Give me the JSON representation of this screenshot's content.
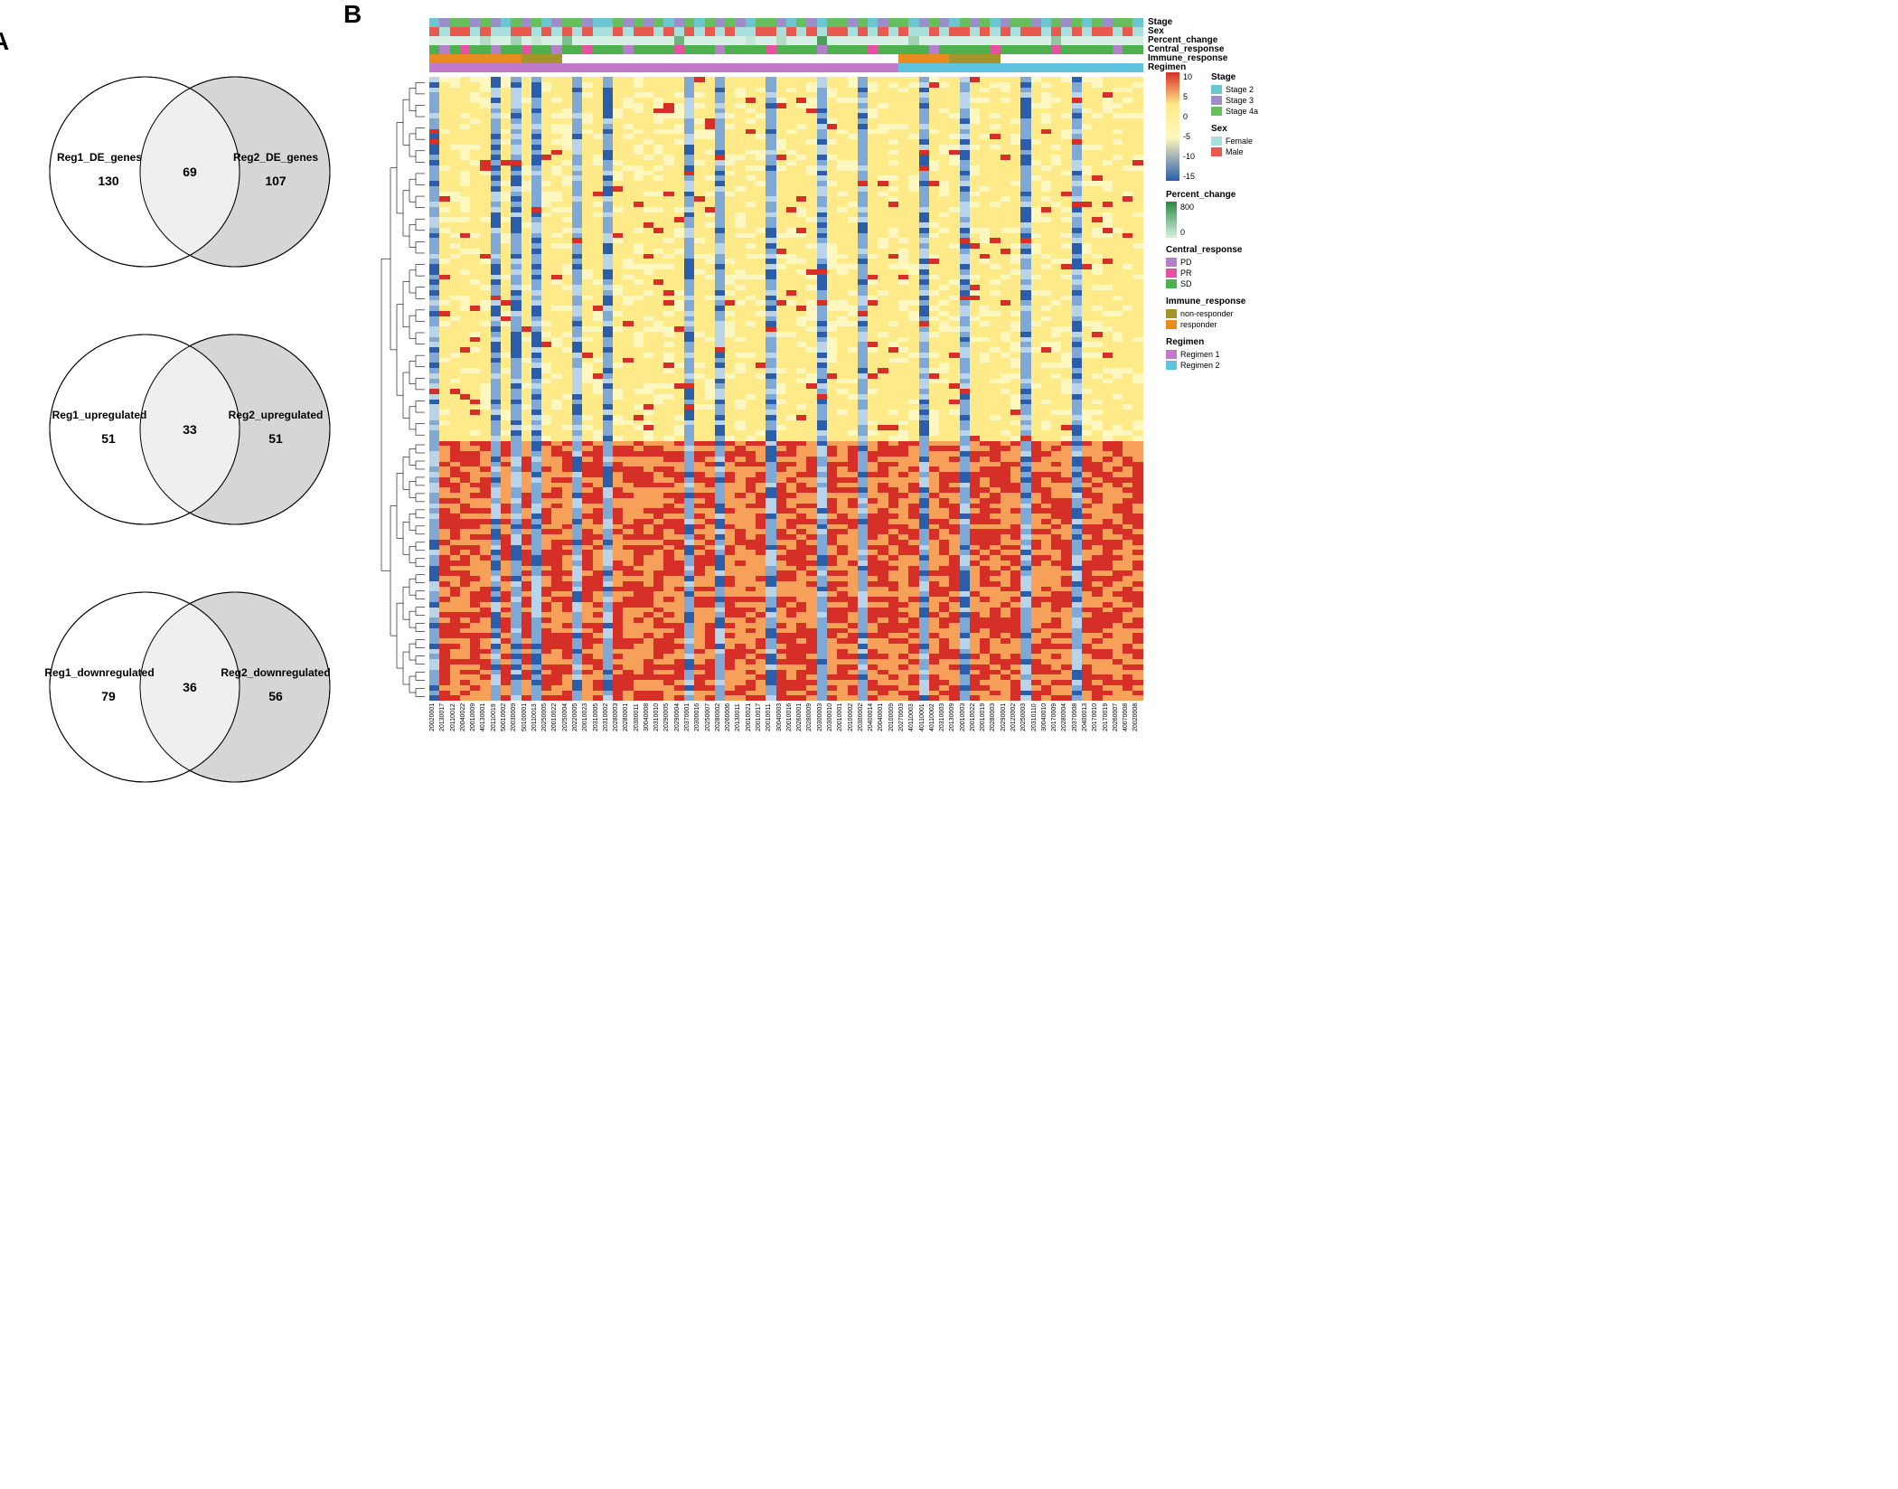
{
  "panel_labels": {
    "a": "A",
    "b": "B"
  },
  "venns": [
    {
      "left_label": "Reg1_DE_genes",
      "left_count": 130,
      "mid_count": 69,
      "right_label": "Reg2_DE_genes",
      "right_count": 107,
      "left_fill": "#ffffff",
      "right_fill": "#d6d6d6",
      "mid_fill": "#efefef",
      "stroke": "#000000"
    },
    {
      "left_label": "Reg1_upregulated",
      "left_count": 51,
      "mid_count": 33,
      "right_label": "Reg2_upregulated",
      "right_count": 51,
      "left_fill": "#ffffff",
      "right_fill": "#d6d6d6",
      "mid_fill": "#efefef",
      "stroke": "#000000"
    },
    {
      "left_label": "Reg1_downregulated",
      "left_count": 79,
      "mid_count": 36,
      "right_label": "Reg2_downregulated",
      "right_count": 56,
      "left_fill": "#ffffff",
      "right_fill": "#d6d6d6",
      "mid_fill": "#efefef",
      "stroke": "#000000"
    }
  ],
  "heatmap_style": {
    "color_stops": [
      "#d62f27",
      "#ffea8a",
      "#fff7c0",
      "#2b5da8"
    ],
    "colorbar_ticks": [
      "10",
      "5",
      "0",
      "-5",
      "-10",
      "-15"
    ],
    "n_rows": 120,
    "n_cols": 70,
    "split_row": 70
  },
  "annotation_tracks": [
    "Stage",
    "Sex",
    "Percent_change",
    "Central_response",
    "Immune_response",
    "Regimen"
  ],
  "annotation_colors": {
    "Stage": {
      "Stage 2": "#6cc6d1",
      "Stage 3": "#9c8fc9",
      "Stage 4a": "#66bf5c"
    },
    "Sex": {
      "Female": "#a8e0dd",
      "Male": "#e85a50"
    },
    "Percent_change": {
      "gradient": [
        "#d6f0e5",
        "#2a8a3f"
      ],
      "ticks": [
        "800",
        "0"
      ]
    },
    "Central_response": {
      "PD": "#b580c9",
      "PR": "#e553a0",
      "SD": "#4fb04f"
    },
    "Immune_response": {
      "non-responder": "#a39529",
      "responder": "#e88c1f"
    },
    "Regimen": {
      "Regimen 1": "#c179c9",
      "Regimen 2": "#5fc3e0"
    }
  },
  "column_annotations": {
    "Stage": [
      2,
      3,
      4,
      4,
      3,
      4,
      3,
      2,
      4,
      3,
      4,
      2,
      3,
      4,
      4,
      3,
      2,
      2,
      4,
      3,
      4,
      3,
      4,
      2,
      3,
      4,
      2,
      4,
      3,
      4,
      3,
      2,
      4,
      4,
      3,
      2,
      4,
      3,
      2,
      4,
      4,
      3,
      4,
      2,
      3,
      4,
      4,
      2,
      3,
      4,
      3,
      2,
      4,
      3,
      4,
      2,
      3,
      4,
      4,
      3,
      2,
      4,
      3,
      4,
      2,
      4,
      3,
      4,
      4,
      2
    ],
    "Sex": [
      "M",
      "F",
      "M",
      "M",
      "F",
      "M",
      "F",
      "F",
      "M",
      "M",
      "F",
      "M",
      "F",
      "M",
      "F",
      "M",
      "F",
      "F",
      "M",
      "F",
      "M",
      "M",
      "F",
      "M",
      "F",
      "M",
      "F",
      "M",
      "F",
      "M",
      "F",
      "F",
      "M",
      "M",
      "F",
      "M",
      "F",
      "M",
      "F",
      "M",
      "M",
      "F",
      "M",
      "F",
      "M",
      "F",
      "M",
      "F",
      "F",
      "M",
      "F",
      "M",
      "M",
      "F",
      "M",
      "F",
      "M",
      "F",
      "M",
      "M",
      "F",
      "M",
      "F",
      "M",
      "F",
      "M",
      "M",
      "F",
      "M",
      "F"
    ],
    "Percent_change_idx": [
      0,
      0,
      0,
      0,
      0,
      20,
      0,
      0,
      30,
      0,
      10,
      0,
      0,
      50,
      0,
      0,
      0,
      0,
      0,
      0,
      0,
      0,
      0,
      0,
      60,
      0,
      0,
      0,
      0,
      0,
      0,
      10,
      0,
      0,
      20,
      0,
      0,
      0,
      80,
      0,
      0,
      0,
      0,
      0,
      0,
      0,
      0,
      30,
      0,
      0,
      0,
      0,
      0,
      0,
      0,
      0,
      0,
      0,
      0,
      0,
      0,
      40,
      0,
      0,
      0,
      0,
      0,
      0,
      0,
      0
    ],
    "Central_response": [
      "SD",
      "PD",
      "SD",
      "PR",
      "SD",
      "SD",
      "PD",
      "SD",
      "SD",
      "PR",
      "SD",
      "SD",
      "PD",
      "SD",
      "SD",
      "PR",
      "SD",
      "SD",
      "SD",
      "PD",
      "SD",
      "SD",
      "SD",
      "SD",
      "PR",
      "SD",
      "SD",
      "SD",
      "PD",
      "SD",
      "SD",
      "SD",
      "SD",
      "PR",
      "SD",
      "SD",
      "SD",
      "SD",
      "PD",
      "SD",
      "SD",
      "SD",
      "SD",
      "PR",
      "SD",
      "SD",
      "SD",
      "SD",
      "SD",
      "PD",
      "SD",
      "SD",
      "SD",
      "SD",
      "SD",
      "PR",
      "SD",
      "SD",
      "SD",
      "SD",
      "SD",
      "PR",
      "SD",
      "SD",
      "SD",
      "SD",
      "SD",
      "PD",
      "SD",
      "SD"
    ],
    "Immune_response": [
      "R",
      "R",
      "R",
      "R",
      "R",
      "R",
      "R",
      "R",
      "R",
      "N",
      "N",
      "N",
      "N",
      "",
      "",
      "",
      "",
      "",
      "",
      "",
      "",
      "",
      "",
      "",
      "",
      "",
      "",
      "",
      "",
      "",
      "",
      "",
      "",
      "",
      "",
      "",
      "",
      "",
      "",
      "",
      "",
      "",
      "",
      "",
      "",
      "",
      "R",
      "R",
      "R",
      "R",
      "R",
      "N",
      "N",
      "N",
      "N",
      "N",
      "",
      "",
      "",
      "",
      "",
      "",
      "",
      "",
      "",
      "",
      "",
      "",
      "",
      ""
    ],
    "Regimen": [
      1,
      1,
      1,
      1,
      1,
      1,
      1,
      1,
      1,
      1,
      1,
      1,
      1,
      1,
      1,
      1,
      1,
      1,
      1,
      1,
      1,
      1,
      1,
      1,
      1,
      1,
      1,
      1,
      1,
      1,
      1,
      1,
      1,
      1,
      1,
      1,
      1,
      1,
      1,
      1,
      1,
      1,
      1,
      1,
      1,
      1,
      2,
      2,
      2,
      2,
      2,
      2,
      2,
      2,
      2,
      2,
      2,
      2,
      2,
      2,
      2,
      2,
      2,
      2,
      2,
      2,
      2,
      2,
      2,
      2
    ]
  },
  "sample_labels": [
    "20020001",
    "20130017",
    "20110012",
    "20040022",
    "20010009",
    "40130001",
    "20110019",
    "50010002",
    "20030009",
    "50100001",
    "20110013",
    "20250005",
    "20010022",
    "20250004",
    "20220005",
    "20010023",
    "20310005",
    "20310002",
    "20280003",
    "20280001",
    "20300011",
    "30040008",
    "20310010",
    "20290005",
    "20290004",
    "20370001",
    "20300016",
    "20250007",
    "20280002",
    "20260006",
    "20130011",
    "20010021",
    "20010017",
    "20010011",
    "30040003",
    "20010016",
    "20260001",
    "20280009",
    "20300003",
    "20300010",
    "20010001",
    "20100002",
    "20300002",
    "20400014",
    "20040001",
    "20100009",
    "20270003",
    "40110003",
    "40110001",
    "40110002",
    "20310003",
    "20130009",
    "20010003",
    "20010022",
    "20010019",
    "20280003",
    "20290001",
    "20120002",
    "20250003",
    "20310110",
    "30040010",
    "20170009",
    "20280004",
    "20370008",
    "20400013",
    "20170010",
    "20170019",
    "20260007",
    "40070008",
    "20020008"
  ],
  "venn_font": {
    "label_size": 12,
    "count_size": 14,
    "count_weight": "bold",
    "stroke_width": 1
  }
}
